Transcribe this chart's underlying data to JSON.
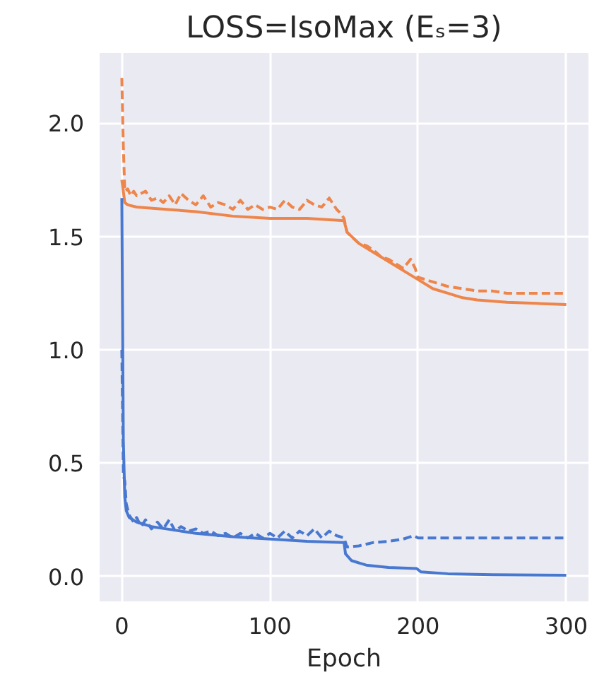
{
  "chart_data": {
    "type": "line",
    "title": "LOSS=IsoMax (Eₛ=3)",
    "xlabel": "Epoch",
    "xlim": [
      -15,
      315
    ],
    "ylim": [
      -0.11,
      2.31
    ],
    "xticks": [
      0,
      100,
      200,
      300
    ],
    "yticks": [
      {
        "value": 0,
        "label": "0.0"
      },
      {
        "value": 0.5,
        "label": "0.5"
      },
      {
        "value": 1,
        "label": "1.0"
      },
      {
        "value": 1.5,
        "label": "1.5"
      },
      {
        "value": 2,
        "label": "2.0"
      }
    ],
    "grid": true,
    "marker": "none",
    "series": [
      {
        "color": "#ee854a",
        "line_style": "dashed",
        "x": [
          0,
          1,
          2,
          4,
          6,
          8,
          10,
          13,
          16,
          20,
          24,
          28,
          32,
          36,
          40,
          45,
          50,
          55,
          60,
          65,
          70,
          75,
          80,
          85,
          90,
          95,
          100,
          105,
          110,
          115,
          120,
          125,
          130,
          135,
          140,
          145,
          148,
          150,
          152,
          155,
          160,
          165,
          170,
          175,
          180,
          185,
          190,
          195,
          198,
          200,
          205,
          210,
          220,
          230,
          240,
          250,
          260,
          270,
          280,
          290,
          300
        ],
        "values": [
          2.2,
          1.9,
          1.7,
          1.71,
          1.68,
          1.7,
          1.68,
          1.69,
          1.7,
          1.66,
          1.67,
          1.65,
          1.68,
          1.64,
          1.69,
          1.66,
          1.64,
          1.68,
          1.63,
          1.65,
          1.64,
          1.62,
          1.66,
          1.62,
          1.64,
          1.62,
          1.63,
          1.62,
          1.66,
          1.63,
          1.62,
          1.66,
          1.64,
          1.63,
          1.67,
          1.62,
          1.6,
          1.58,
          1.52,
          1.5,
          1.47,
          1.46,
          1.44,
          1.41,
          1.4,
          1.38,
          1.36,
          1.4,
          1.36,
          1.32,
          1.31,
          1.3,
          1.28,
          1.27,
          1.26,
          1.26,
          1.25,
          1.25,
          1.25,
          1.25,
          1.25
        ]
      },
      {
        "color": "#ee854a",
        "line_style": "solid",
        "x": [
          0,
          2,
          4,
          10,
          30,
          50,
          75,
          100,
          125,
          150,
          152,
          160,
          170,
          180,
          190,
          200,
          210,
          220,
          230,
          240,
          260,
          280,
          300
        ],
        "values": [
          1.75,
          1.65,
          1.64,
          1.63,
          1.62,
          1.61,
          1.59,
          1.58,
          1.58,
          1.57,
          1.52,
          1.47,
          1.43,
          1.39,
          1.35,
          1.31,
          1.27,
          1.25,
          1.23,
          1.22,
          1.21,
          1.205,
          1.2
        ]
      },
      {
        "color": "#4878d0",
        "line_style": "dashed",
        "x": [
          0,
          1,
          2,
          3,
          5,
          8,
          10,
          13,
          16,
          20,
          24,
          28,
          32,
          36,
          40,
          45,
          50,
          55,
          60,
          65,
          70,
          75,
          80,
          85,
          90,
          95,
          100,
          105,
          110,
          115,
          120,
          125,
          130,
          135,
          140,
          145,
          150,
          152,
          160,
          170,
          180,
          190,
          197,
          200,
          210,
          250,
          300
        ],
        "values": [
          1.0,
          0.45,
          0.42,
          0.32,
          0.27,
          0.24,
          0.26,
          0.22,
          0.25,
          0.21,
          0.24,
          0.21,
          0.25,
          0.2,
          0.22,
          0.2,
          0.21,
          0.19,
          0.2,
          0.18,
          0.19,
          0.17,
          0.19,
          0.17,
          0.19,
          0.17,
          0.19,
          0.17,
          0.2,
          0.17,
          0.2,
          0.18,
          0.21,
          0.17,
          0.2,
          0.18,
          0.17,
          0.13,
          0.135,
          0.15,
          0.155,
          0.165,
          0.18,
          0.17,
          0.17,
          0.17,
          0.17
        ]
      },
      {
        "color": "#4878d0",
        "line_style": "solid",
        "x": [
          0,
          1,
          2,
          3,
          5,
          10,
          20,
          30,
          50,
          75,
          100,
          125,
          150,
          151,
          155,
          165,
          180,
          199,
          202,
          220,
          250,
          300
        ],
        "values": [
          1.67,
          0.6,
          0.35,
          0.29,
          0.26,
          0.24,
          0.22,
          0.21,
          0.19,
          0.175,
          0.165,
          0.155,
          0.15,
          0.1,
          0.07,
          0.05,
          0.04,
          0.035,
          0.02,
          0.012,
          0.008,
          0.005
        ]
      }
    ]
  }
}
